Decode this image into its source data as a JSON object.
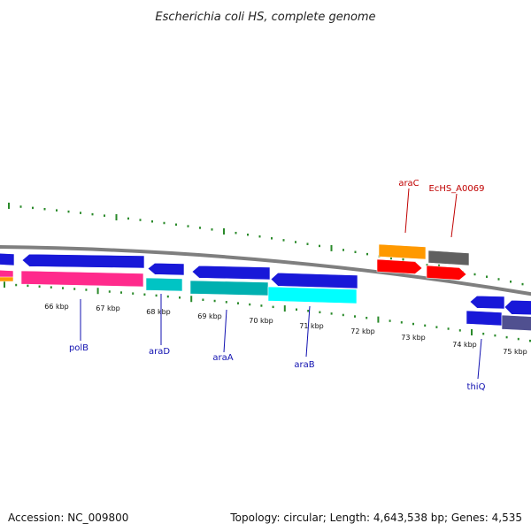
{
  "title": "Escherichia coli HS, complete genome",
  "footer": {
    "accession": "Accession: NC_009800",
    "topology": "Topology: circular; Length: 4,643,538 bp; Genes: 4,535"
  },
  "colors": {
    "backbone": "#7f7f7f",
    "ticks": "#2a8a2a",
    "forward_label": "#1010b0",
    "reverse_label": "#c00000",
    "blue": "#1818d8",
    "magenta": "#ff2a8c",
    "cyan": "#00c4c4",
    "cyan_light": "#00ffff",
    "teal": "#00b0b0",
    "orange": "#ff9900",
    "red": "#ff0000",
    "gray": "#606060",
    "slate": "#505090"
  },
  "scale_labels": [
    "66 kbp",
    "67 kbp",
    "68 kbp",
    "69 kbp",
    "70 kbp",
    "71 kbp",
    "72 kbp",
    "73 kbp",
    "74 kbp",
    "75 kbp"
  ],
  "gene_labels": [
    {
      "name": "polB",
      "strand": "forward"
    },
    {
      "name": "araD",
      "strand": "forward"
    },
    {
      "name": "araA",
      "strand": "forward"
    },
    {
      "name": "araB",
      "strand": "forward"
    },
    {
      "name": "thiQ",
      "strand": "forward"
    },
    {
      "name": "araC",
      "strand": "reverse"
    },
    {
      "name": "EcHS_A0069",
      "strand": "reverse"
    }
  ]
}
